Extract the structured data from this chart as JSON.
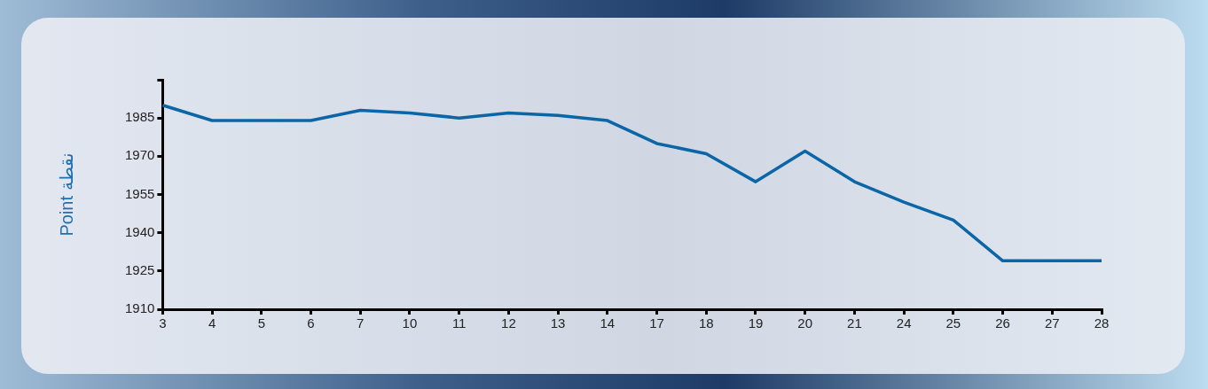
{
  "chart_data": {
    "type": "line",
    "ylabel": "Point نقطة",
    "categories": [
      "3",
      "4",
      "5",
      "6",
      "7",
      "10",
      "11",
      "12",
      "13",
      "14",
      "17",
      "18",
      "19",
      "20",
      "21",
      "24",
      "25",
      "26",
      "27",
      "28"
    ],
    "series": [
      {
        "color": "#0a66a6",
        "values": [
          1990,
          1984,
          1984,
          1984,
          1988,
          1987,
          1985,
          1987,
          1986,
          1984,
          1975,
          1971,
          1960,
          1972,
          1960,
          1952,
          1945,
          1929,
          1929,
          1929
        ]
      }
    ],
    "ylim": [
      1910,
      2000
    ],
    "yticks": [
      1910,
      1925,
      1940,
      1955,
      1970,
      1985,
      {
        "value": 2000,
        "label": null
      }
    ],
    "grid": false,
    "legend": false,
    "marker": "none",
    "line_style": "solid"
  }
}
